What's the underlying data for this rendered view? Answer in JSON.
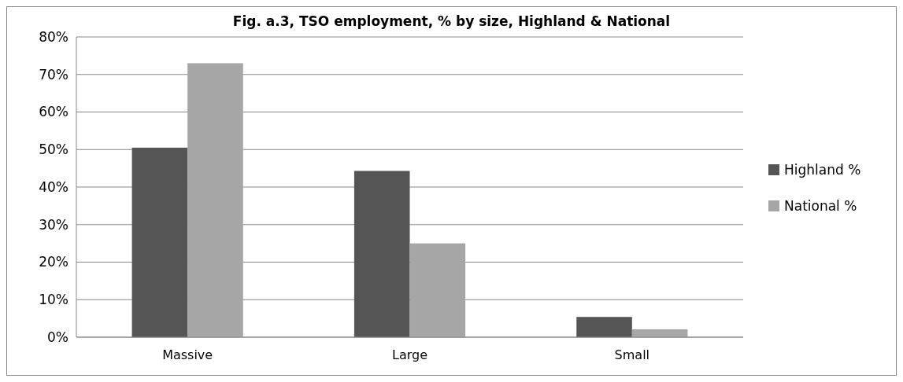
{
  "chart_data": {
    "type": "bar",
    "title": "Fig. a.3, TSO employment, % by size, Highland & National",
    "categories": [
      "Massive",
      "Large",
      "Small"
    ],
    "series": [
      {
        "name": "Highland %",
        "color": "#555555",
        "values": [
          50.5,
          44.3,
          5.4
        ]
      },
      {
        "name": "National %",
        "color": "#a6a6a6",
        "values": [
          73,
          25,
          2.1
        ]
      }
    ],
    "ylim": [
      0,
      80
    ],
    "yticks": [
      {
        "value": 0,
        "label": "0%"
      },
      {
        "value": 10,
        "label": "10%"
      },
      {
        "value": 20,
        "label": "20%"
      },
      {
        "value": 30,
        "label": "30%"
      },
      {
        "value": 40,
        "label": "40%"
      },
      {
        "value": 50,
        "label": "50%"
      },
      {
        "value": 60,
        "label": "60%"
      },
      {
        "value": 70,
        "label": "70%"
      },
      {
        "value": 80,
        "label": "80%"
      }
    ],
    "grid": "y",
    "legend": "right"
  }
}
